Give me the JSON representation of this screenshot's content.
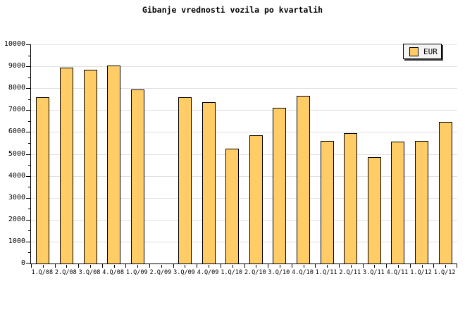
{
  "title": "Gibanje vrednosti vozila po kvartalih",
  "legend": {
    "label": "EUR",
    "swatch_color": "#FFCC66"
  },
  "colors": {
    "bar_fill": "#FFCC66",
    "bar_border": "#000000",
    "grid": "#E0E0E0",
    "axis": "#000000",
    "background": "#FFFFFF",
    "legend_bg": "#F4F4F4"
  },
  "chart_data": {
    "type": "bar",
    "title": "Gibanje vrednosti vozila po kvartalih",
    "categories": [
      "1.Q/08",
      "2.Q/08",
      "3.Q/08",
      "4.Q/08",
      "1.Q/09",
      "2.Q/09",
      "3.Q/09",
      "4.Q/09",
      "1.Q/10",
      "2.Q/10",
      "3.Q/10",
      "4.Q/10",
      "1.Q/11",
      "2.Q/11",
      "3.Q/11",
      "4.Q/11",
      "1.Q/12",
      "1.Q/12"
    ],
    "series": [
      {
        "name": "EUR",
        "values": [
          7600,
          8950,
          8850,
          9050,
          7950,
          null,
          7600,
          7350,
          5250,
          5850,
          7100,
          7650,
          5600,
          5950,
          4850,
          5550,
          5600,
          6450
        ]
      }
    ],
    "xlabel": "",
    "ylabel": "",
    "ylim": [
      0,
      10000
    ],
    "ytick_step": 1000,
    "ytick_minor_step": 500,
    "grid": "horizontal-major",
    "legend_position": "top-right"
  }
}
